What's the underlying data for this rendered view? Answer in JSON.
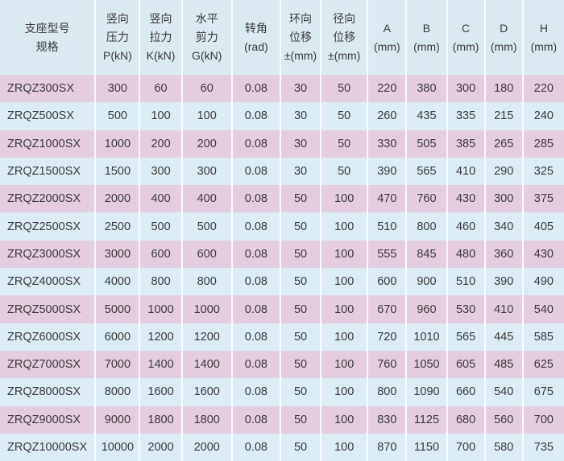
{
  "colors": {
    "header_bg": "#dbe9f1",
    "row_pink": "#e5cde0",
    "row_blue": "#dcecf4",
    "text": "#3a3a3a"
  },
  "headers": [
    [
      "支座型号",
      "规格"
    ],
    [
      "竖向",
      "压力",
      "P(kN)"
    ],
    [
      "竖向",
      "拉力",
      "K(kN)"
    ],
    [
      "水平",
      "剪力",
      "G(kN)"
    ],
    [
      "转角",
      "(rad)"
    ],
    [
      "环向",
      "位移",
      "±(mm)"
    ],
    [
      "径向",
      "位移",
      "±(mm)"
    ],
    [
      "A",
      "(mm)"
    ],
    [
      "B",
      "(mm)"
    ],
    [
      "C",
      "(mm)"
    ],
    [
      "D",
      "(mm)"
    ],
    [
      "H",
      "(mm)"
    ]
  ],
  "rows": [
    [
      "ZRQZ300SX",
      "300",
      "60",
      "60",
      "0.08",
      "30",
      "50",
      "220",
      "380",
      "300",
      "180",
      "220"
    ],
    [
      "ZRQZ500SX",
      "500",
      "100",
      "100",
      "0.08",
      "30",
      "50",
      "260",
      "435",
      "335",
      "215",
      "240"
    ],
    [
      "ZRQZ1000SX",
      "1000",
      "200",
      "200",
      "0.08",
      "30",
      "50",
      "330",
      "505",
      "385",
      "265",
      "285"
    ],
    [
      "ZRQZ1500SX",
      "1500",
      "300",
      "300",
      "0.08",
      "30",
      "50",
      "390",
      "565",
      "410",
      "290",
      "325"
    ],
    [
      "ZRQZ2000SX",
      "2000",
      "400",
      "400",
      "0.08",
      "50",
      "100",
      "470",
      "760",
      "430",
      "300",
      "375"
    ],
    [
      "ZRQZ2500SX",
      "2500",
      "500",
      "500",
      "0.08",
      "50",
      "100",
      "510",
      "800",
      "460",
      "340",
      "405"
    ],
    [
      "ZRQZ3000SX",
      "3000",
      "600",
      "600",
      "0.08",
      "50",
      "100",
      "555",
      "845",
      "480",
      "360",
      "430"
    ],
    [
      "ZRQZ4000SX",
      "4000",
      "800",
      "800",
      "0.08",
      "50",
      "100",
      "600",
      "900",
      "510",
      "390",
      "490"
    ],
    [
      "ZRQZ5000SX",
      "5000",
      "1000",
      "1000",
      "0.08",
      "50",
      "100",
      "670",
      "960",
      "530",
      "410",
      "540"
    ],
    [
      "ZRQZ6000SX",
      "6000",
      "1200",
      "1200",
      "0.08",
      "50",
      "100",
      "720",
      "1010",
      "565",
      "445",
      "585"
    ],
    [
      "ZRQZ7000SX",
      "7000",
      "1400",
      "1400",
      "0.08",
      "50",
      "100",
      "760",
      "1050",
      "605",
      "485",
      "625"
    ],
    [
      "ZRQZ8000SX",
      "8000",
      "1600",
      "1600",
      "0.08",
      "50",
      "100",
      "800",
      "1090",
      "660",
      "540",
      "675"
    ],
    [
      "ZRQZ9000SX",
      "9000",
      "1800",
      "1800",
      "0.08",
      "50",
      "100",
      "830",
      "1125",
      "680",
      "560",
      "700"
    ],
    [
      "ZRQZ10000SX",
      "10000",
      "2000",
      "2000",
      "0.08",
      "50",
      "100",
      "870",
      "1150",
      "700",
      "580",
      "735"
    ]
  ]
}
